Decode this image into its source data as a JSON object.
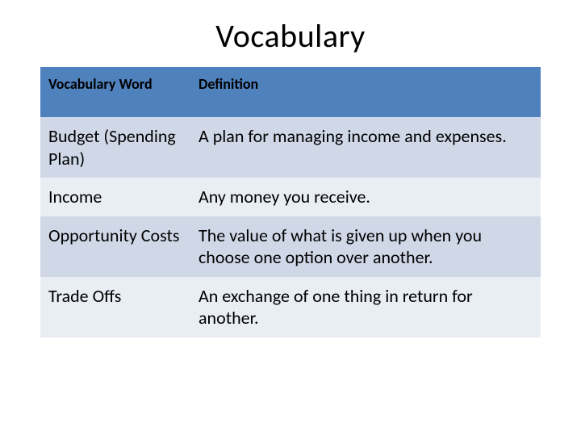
{
  "title": "Vocabulary",
  "table": {
    "header_bg": "#4f81bd",
    "row_bg_alt1": "#d0d8e8",
    "row_bg_alt2": "#e9edf4",
    "header_fontsize": 18,
    "cell_fontsize": 22,
    "columns": [
      {
        "key": "word",
        "label": "Vocabulary Word",
        "width_pct": 30
      },
      {
        "key": "definition",
        "label": "Definition",
        "width_pct": 70
      }
    ],
    "rows": [
      {
        "word": "Budget (Spending Plan)",
        "definition": "A plan for managing income and expenses."
      },
      {
        "word": "Income",
        "definition": "Any money you receive."
      },
      {
        "word": "Opportunity Costs",
        "definition": "The value of what is given up when you choose one option over another."
      },
      {
        "word": "Trade Offs",
        "definition": "An exchange of one thing in return for another."
      }
    ]
  }
}
